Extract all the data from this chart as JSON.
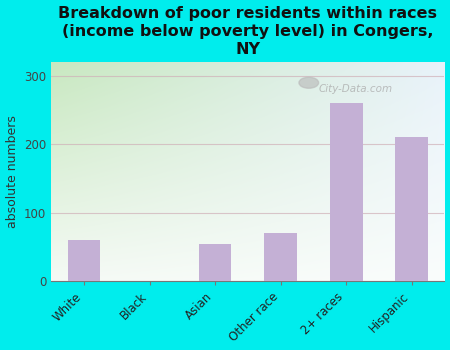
{
  "categories": [
    "White",
    "Black",
    "Asian",
    "Other race",
    "2+ races",
    "Hispanic"
  ],
  "values": [
    60,
    0,
    55,
    70,
    260,
    210
  ],
  "bar_color": "#C4B0D5",
  "background_color": "#00EDED",
  "plot_bg_top_left": "#c8e8c0",
  "plot_bg_top_right": "#e8f0f8",
  "plot_bg_bottom": "#f5f8f5",
  "title": "Breakdown of poor residents within races\n(income below poverty level) in Congers,\nNY",
  "ylabel": "absolute numbers",
  "ylim": [
    0,
    320
  ],
  "yticks": [
    0,
    100,
    200,
    300
  ],
  "title_fontsize": 11.5,
  "axis_label_fontsize": 9,
  "tick_fontsize": 8.5,
  "watermark": "City-Data.com"
}
